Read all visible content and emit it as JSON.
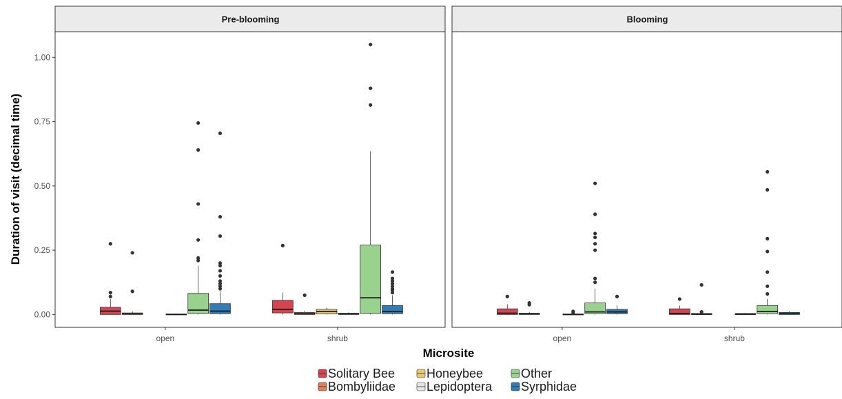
{
  "chart_data": {
    "type": "boxplot",
    "title": "",
    "xlabel": "Microsite",
    "ylabel": "Duration of visit (decimal time)",
    "ylim": [
      -0.05,
      1.1
    ],
    "yticks": [
      0,
      0.25,
      0.5,
      0.75,
      1
    ],
    "ytick_labels": [
      "0.00",
      "0.25",
      "0.50",
      "0.75",
      "1.00"
    ],
    "grid": false,
    "legend_position": "bottom",
    "categories": [
      "open",
      "shrub"
    ],
    "series": [
      {
        "name": "Solitary Bee",
        "color": "#d7434f"
      },
      {
        "name": "Bombyliidae",
        "color": "#e27d56"
      },
      {
        "name": "Honeybee",
        "color": "#e9c86c"
      },
      {
        "name": "Lepidoptera",
        "color": "#e5e5e5"
      },
      {
        "name": "Other",
        "color": "#98d28d"
      },
      {
        "name": "Syrphidae",
        "color": "#2e7db8"
      }
    ],
    "panels": [
      {
        "name": "Pre-blooming",
        "groups": [
          {
            "category": "open",
            "boxes": [
              {
                "series": "Solitary Bee",
                "q1": 0.0,
                "median": 0.013,
                "q3": 0.028,
                "whisker_low": 0.0,
                "whisker_high": 0.06,
                "outliers": [
                  0.07,
                  0.085,
                  0.275
                ]
              },
              {
                "series": "Bombyliidae",
                "q1": 0.0,
                "median": 0.002,
                "q3": 0.006,
                "whisker_low": 0.0,
                "whisker_high": 0.012,
                "outliers": [
                  0.09,
                  0.24
                ]
              },
              {
                "series": "Lepidoptera",
                "q1": 0.0,
                "median": 0.0,
                "q3": 0.002,
                "whisker_low": 0.0,
                "whisker_high": 0.003,
                "outliers": []
              },
              {
                "series": "Other",
                "q1": 0.004,
                "median": 0.017,
                "q3": 0.082,
                "whisker_low": 0.0,
                "whisker_high": 0.19,
                "outliers": [
                  0.21,
                  0.22,
                  0.29,
                  0.43,
                  0.64,
                  0.745
                ]
              },
              {
                "series": "Syrphidae",
                "q1": 0.003,
                "median": 0.013,
                "q3": 0.042,
                "whisker_low": 0.0,
                "whisker_high": 0.09,
                "outliers": [
                  0.1,
                  0.11,
                  0.12,
                  0.13,
                  0.15,
                  0.17,
                  0.19,
                  0.2,
                  0.305,
                  0.38,
                  0.705
                ]
              }
            ]
          },
          {
            "category": "shrub",
            "boxes": [
              {
                "series": "Solitary Bee",
                "q1": 0.006,
                "median": 0.02,
                "q3": 0.055,
                "whisker_low": 0.0,
                "whisker_high": 0.085,
                "outliers": [
                  0.268
                ]
              },
              {
                "series": "Bombyliidae",
                "q1": 0.0,
                "median": 0.003,
                "q3": 0.008,
                "whisker_low": 0.0,
                "whisker_high": 0.015,
                "outliers": [
                  0.075
                ]
              },
              {
                "series": "Honeybee",
                "q1": 0.002,
                "median": 0.012,
                "q3": 0.02,
                "whisker_low": 0.0,
                "whisker_high": 0.025,
                "outliers": []
              },
              {
                "series": "Lepidoptera",
                "q1": 0.0,
                "median": 0.002,
                "q3": 0.005,
                "whisker_low": 0.0,
                "whisker_high": 0.008,
                "outliers": []
              },
              {
                "series": "Other",
                "q1": 0.004,
                "median": 0.065,
                "q3": 0.27,
                "whisker_low": 0.0,
                "whisker_high": 0.635,
                "outliers": [
                  0.815,
                  0.88,
                  1.05
                ]
              },
              {
                "series": "Syrphidae",
                "q1": 0.003,
                "median": 0.012,
                "q3": 0.035,
                "whisker_low": 0.0,
                "whisker_high": 0.075,
                "outliers": [
                  0.085,
                  0.095,
                  0.1,
                  0.11,
                  0.12,
                  0.13,
                  0.14,
                  0.165
                ]
              }
            ]
          }
        ]
      },
      {
        "name": "Blooming",
        "groups": [
          {
            "category": "open",
            "boxes": [
              {
                "series": "Solitary Bee",
                "q1": 0.0,
                "median": 0.005,
                "q3": 0.022,
                "whisker_low": 0.0,
                "whisker_high": 0.04,
                "outliers": [
                  0.07
                ]
              },
              {
                "series": "Bombyliidae",
                "q1": 0.0,
                "median": 0.002,
                "q3": 0.005,
                "whisker_low": 0.0,
                "whisker_high": 0.01,
                "outliers": [
                  0.038,
                  0.045
                ]
              },
              {
                "series": "Lepidoptera",
                "q1": 0.0,
                "median": 0.0,
                "q3": 0.002,
                "whisker_low": 0.0,
                "whisker_high": 0.003,
                "outliers": [
                  0.005,
                  0.012
                ]
              },
              {
                "series": "Other",
                "q1": 0.003,
                "median": 0.01,
                "q3": 0.045,
                "whisker_low": 0.0,
                "whisker_high": 0.1,
                "outliers": [
                  0.125,
                  0.14,
                  0.25,
                  0.275,
                  0.3,
                  0.315,
                  0.39,
                  0.51
                ]
              },
              {
                "series": "Syrphidae",
                "q1": 0.003,
                "median": 0.01,
                "q3": 0.02,
                "whisker_low": 0.0,
                "whisker_high": 0.035,
                "outliers": [
                  0.07
                ]
              }
            ]
          },
          {
            "category": "shrub",
            "boxes": [
              {
                "series": "Solitary Bee",
                "q1": 0.0,
                "median": 0.004,
                "q3": 0.022,
                "whisker_low": 0.0,
                "whisker_high": 0.035,
                "outliers": [
                  0.06
                ]
              },
              {
                "series": "Bombyliidae",
                "q1": 0.0,
                "median": 0.001,
                "q3": 0.004,
                "whisker_low": 0.0,
                "whisker_high": 0.006,
                "outliers": [
                  0.01,
                  0.115
                ]
              },
              {
                "series": "Lepidoptera",
                "q1": 0.0,
                "median": 0.001,
                "q3": 0.004,
                "whisker_low": 0.0,
                "whisker_high": 0.006,
                "outliers": []
              },
              {
                "series": "Other",
                "q1": 0.003,
                "median": 0.012,
                "q3": 0.035,
                "whisker_low": 0.0,
                "whisker_high": 0.06,
                "outliers": [
                  0.08,
                  0.11,
                  0.165,
                  0.245,
                  0.295,
                  0.485,
                  0.555
                ]
              },
              {
                "series": "Syrphidae",
                "q1": 0.0,
                "median": 0.003,
                "q3": 0.008,
                "whisker_low": 0.0,
                "whisker_high": 0.012,
                "outliers": []
              }
            ]
          }
        ]
      }
    ]
  }
}
